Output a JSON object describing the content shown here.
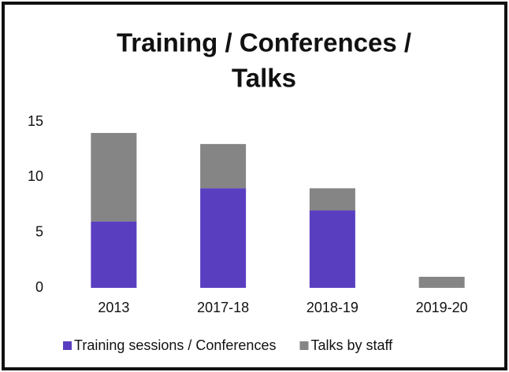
{
  "chart_data": {
    "type": "bar",
    "stacked": true,
    "title": [
      "Training / Conferences /",
      "Talks"
    ],
    "categories": [
      "2013",
      "2017-18",
      "2018-19",
      "2019-20"
    ],
    "series": [
      {
        "name": "Training sessions / Conferences",
        "color": "#5a3ec0",
        "values": [
          6,
          9,
          7,
          0
        ]
      },
      {
        "name": "Talks by staff",
        "color": "#858585",
        "values": [
          8,
          4,
          2,
          1
        ]
      }
    ],
    "ylim": [
      0,
      15
    ],
    "yticks": [
      0,
      5,
      10,
      15
    ],
    "grid": false,
    "legend": "bottom"
  }
}
